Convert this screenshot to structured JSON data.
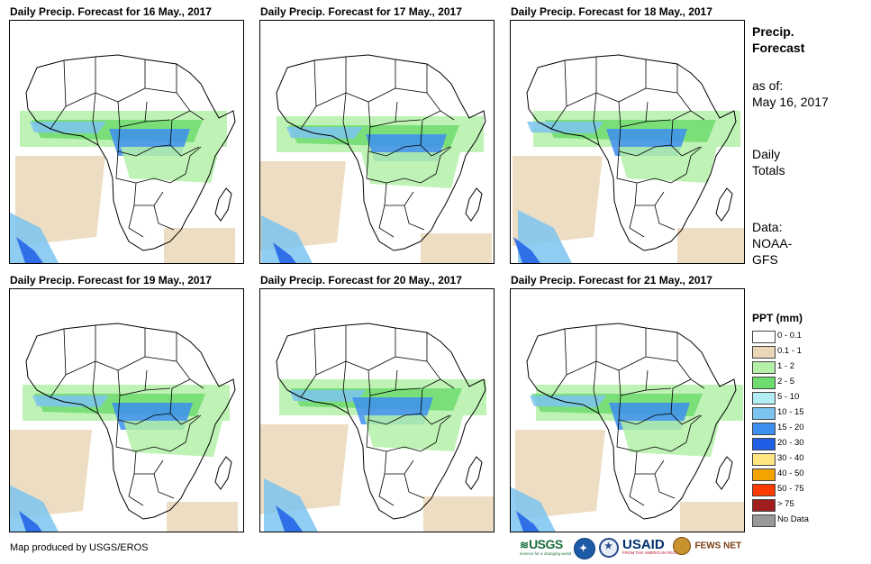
{
  "panels": [
    {
      "title": "Daily Precip. Forecast for 16 May., 2017"
    },
    {
      "title": "Daily Precip. Forecast for 17 May., 2017"
    },
    {
      "title": "Daily Precip. Forecast for 18 May., 2017"
    },
    {
      "title": "Daily Precip. Forecast for 19 May., 2017"
    },
    {
      "title": "Daily Precip. Forecast for 20 May., 2017"
    },
    {
      "title": "Daily Precip. Forecast for 21 May., 2017"
    }
  ],
  "sidebar": {
    "heading_line1": "Precip.",
    "heading_line2": "Forecast",
    "asof_label": "as of:",
    "asof_date": "May 16, 2017",
    "totals_line1": "Daily",
    "totals_line2": "Totals",
    "data_line1": "Data:",
    "data_line2": "NOAA-",
    "data_line3": "GFS"
  },
  "legend": {
    "title": "PPT (mm)",
    "items": [
      {
        "label": "0 - 0.1",
        "color": "#ffffff"
      },
      {
        "label": "0.1 - 1",
        "color": "#ead7b7"
      },
      {
        "label": "1 - 2",
        "color": "#b4f0a8"
      },
      {
        "label": "2 - 5",
        "color": "#6fdc6f"
      },
      {
        "label": "5 - 10",
        "color": "#b4eef5"
      },
      {
        "label": "10 - 15",
        "color": "#7cc4f0"
      },
      {
        "label": "15 - 20",
        "color": "#3d8ff0"
      },
      {
        "label": "20 - 30",
        "color": "#1e5fe6"
      },
      {
        "label": "30 - 40",
        "color": "#ffe680"
      },
      {
        "label": "40 - 50",
        "color": "#f5a300"
      },
      {
        "label": "50 - 75",
        "color": "#ff3c00"
      },
      {
        "label": "> 75",
        "color": "#a01e1e"
      },
      {
        "label": "No Data",
        "color": "#999999"
      }
    ]
  },
  "credit": "Map produced by USGS/EROS",
  "logos": {
    "usgs": "USGS",
    "usgs_tagline": "science for a changing world",
    "usaid": "USAID",
    "usaid_tagline": "FROM THE AMERICAN PEOPLE",
    "fewsnet": "FEWS NET"
  }
}
